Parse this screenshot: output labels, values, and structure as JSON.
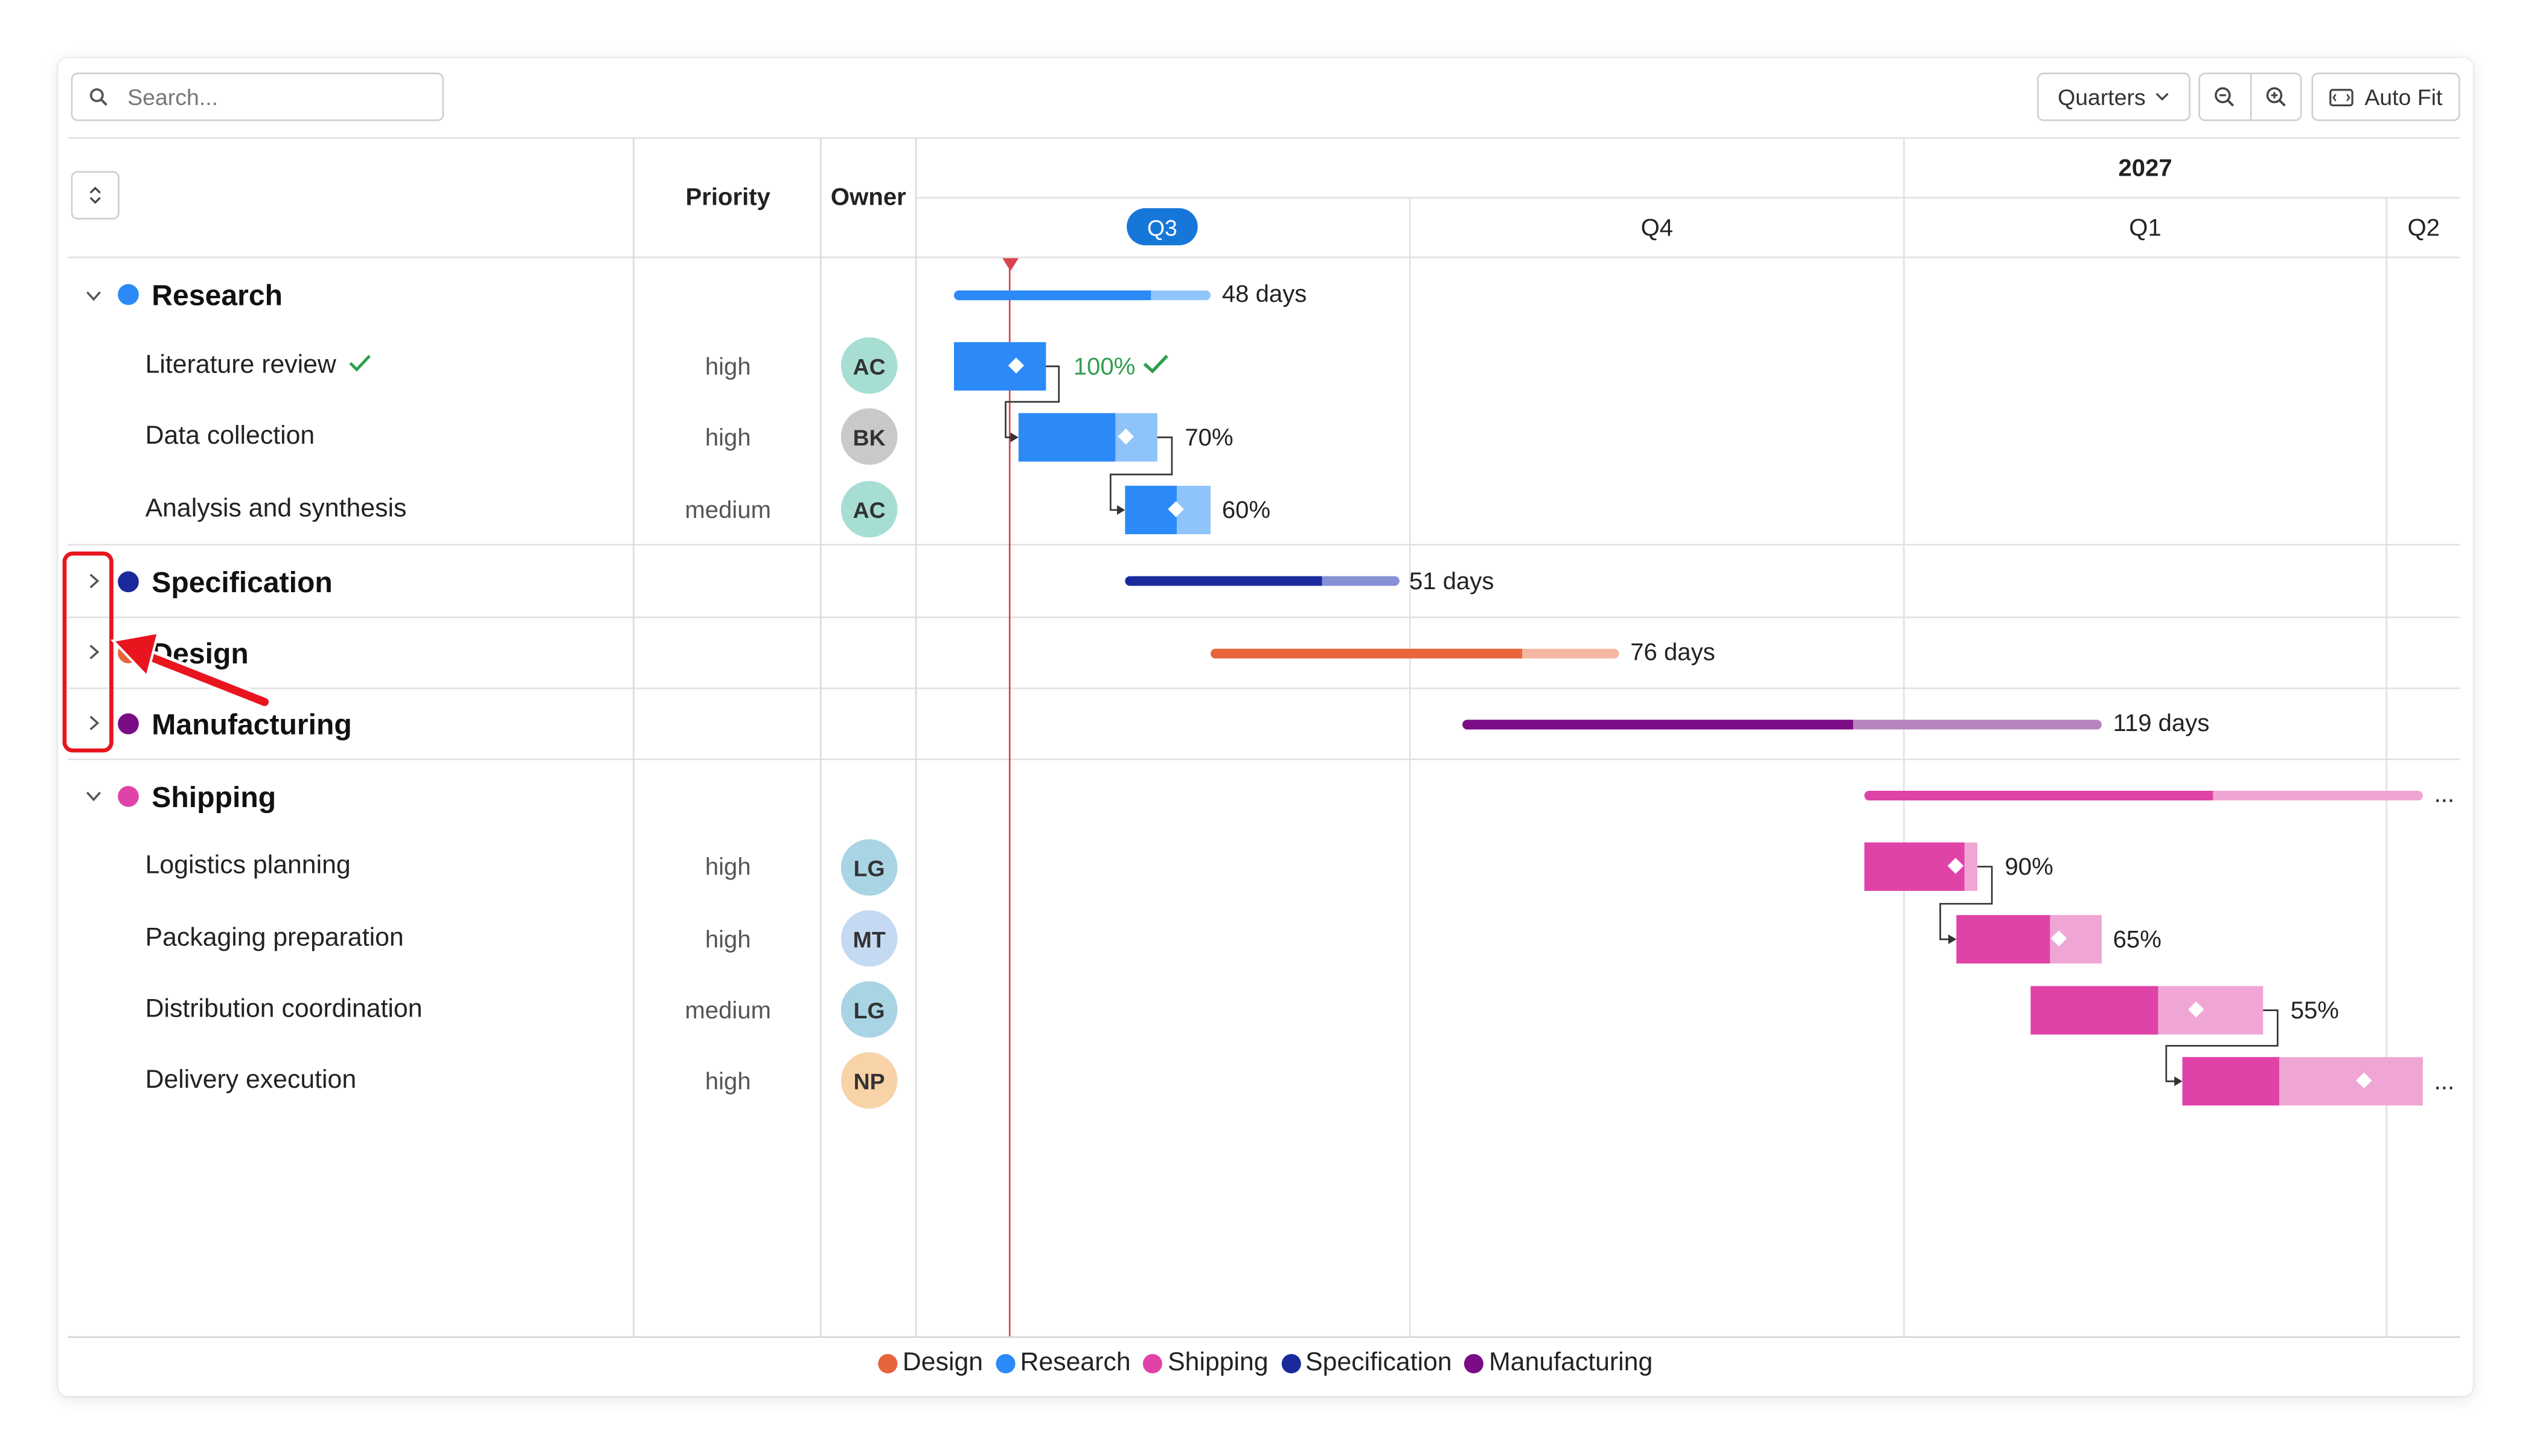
{
  "search": {
    "placeholder": "Search..."
  },
  "toolbar": {
    "scale_label": "Quarters",
    "auto_fit_label": "Auto Fit"
  },
  "columns": {
    "priority": "Priority",
    "owner": "Owner"
  },
  "timeline": {
    "year": "2027",
    "quarters": [
      "Q3",
      "Q4",
      "Q1",
      "Q2"
    ],
    "current_quarter": "Q3"
  },
  "groups": [
    {
      "name": "Research",
      "color": "#2b8af7",
      "expanded": true,
      "summary": "48 days",
      "progress": 0.7,
      "tasks": [
        {
          "name": "Literature review",
          "priority": "high",
          "owner": "AC",
          "progress": 1.0,
          "label": "100%",
          "done": true
        },
        {
          "name": "Data collection",
          "priority": "high",
          "owner": "BK",
          "progress": 0.7,
          "label": "70%"
        },
        {
          "name": "Analysis and synthesis",
          "priority": "medium",
          "owner": "AC",
          "progress": 0.6,
          "label": "60%"
        }
      ]
    },
    {
      "name": "Specification",
      "color": "#1a2a9c",
      "expanded": false,
      "summary": "51 days",
      "progress": 0.72
    },
    {
      "name": "Design",
      "color": "#e8643a",
      "expanded": false,
      "summary": "76 days",
      "progress": 0.76
    },
    {
      "name": "Manufacturing",
      "color": "#7a0d86",
      "expanded": false,
      "summary": "119 days",
      "progress": 0.61
    },
    {
      "name": "Shipping",
      "color": "#e043a8",
      "expanded": true,
      "summary": "...",
      "progress": 0.62,
      "tasks": [
        {
          "name": "Logistics planning",
          "priority": "high",
          "owner": "LG",
          "progress": 0.9,
          "label": "90%"
        },
        {
          "name": "Packaging preparation",
          "priority": "high",
          "owner": "MT",
          "progress": 0.65,
          "label": "65%"
        },
        {
          "name": "Distribution coordination",
          "priority": "medium",
          "owner": "LG",
          "progress": 0.55,
          "label": "55%"
        },
        {
          "name": "Delivery execution",
          "priority": "high",
          "owner": "NP",
          "progress": 0.4,
          "label": "..."
        }
      ]
    }
  ],
  "legend": [
    "Design",
    "Research",
    "Shipping",
    "Specification",
    "Manufacturing"
  ],
  "legend_colors": [
    "#e8643a",
    "#2b8af7",
    "#e043a8",
    "#1a2a9c",
    "#7a0d86"
  ],
  "avatar_colors": {
    "AC": "#a7ded4",
    "BK": "#c9c9c9",
    "LG": "#a9d4e4",
    "MT": "#c4daf2",
    "NP": "#f8d3a8"
  },
  "icons": [
    "search-icon",
    "chevron-down-icon",
    "zoom-out-icon",
    "zoom-in-icon",
    "auto-fit-icon",
    "expand-collapse-icon",
    "chevron-right-icon",
    "check-icon",
    "today-marker-icon"
  ],
  "annotation": {
    "shape": "red-rounded-rectangle",
    "arrow": "red-arrow",
    "target": "collapsed-group-chevrons"
  }
}
